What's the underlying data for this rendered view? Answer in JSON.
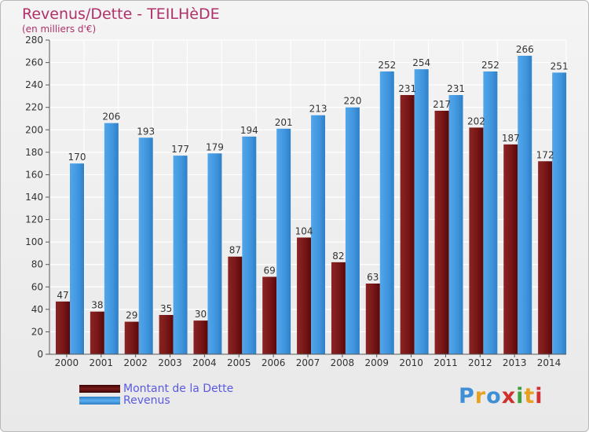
{
  "title": "Revenus/Dette - TEILHèDE",
  "subtitle": "(en milliers d'€)",
  "colors": {
    "dette": "#7a1a1a",
    "revenus": "#3f95dd",
    "title": "#b0306a",
    "legend_text": "#5a5ae0"
  },
  "legend": [
    {
      "label": "Montant de la Dette",
      "color": "#6b0f0f"
    },
    {
      "label": "Revenus",
      "color": "#3f95dd"
    }
  ],
  "logo": {
    "text": "Proxiti",
    "name": "proxiti-logo"
  },
  "chart_data": {
    "type": "bar",
    "categories": [
      "2000",
      "2001",
      "2002",
      "2003",
      "2004",
      "2005",
      "2006",
      "2007",
      "2008",
      "2009",
      "2010",
      "2011",
      "2012",
      "2013",
      "2014"
    ],
    "series": [
      {
        "name": "Montant de la Dette",
        "values": [
          47,
          38,
          29,
          35,
          30,
          87,
          69,
          104,
          82,
          63,
          231,
          217,
          202,
          187,
          172
        ]
      },
      {
        "name": "Revenus",
        "values": [
          170,
          206,
          193,
          177,
          179,
          194,
          201,
          213,
          220,
          252,
          254,
          231,
          252,
          266,
          251
        ]
      }
    ],
    "ylim": [
      0,
      280
    ],
    "yticks": [
      0,
      20,
      40,
      60,
      80,
      100,
      120,
      140,
      160,
      180,
      200,
      220,
      240,
      260,
      280
    ],
    "grid": true,
    "legend_position": "bottom-left"
  }
}
